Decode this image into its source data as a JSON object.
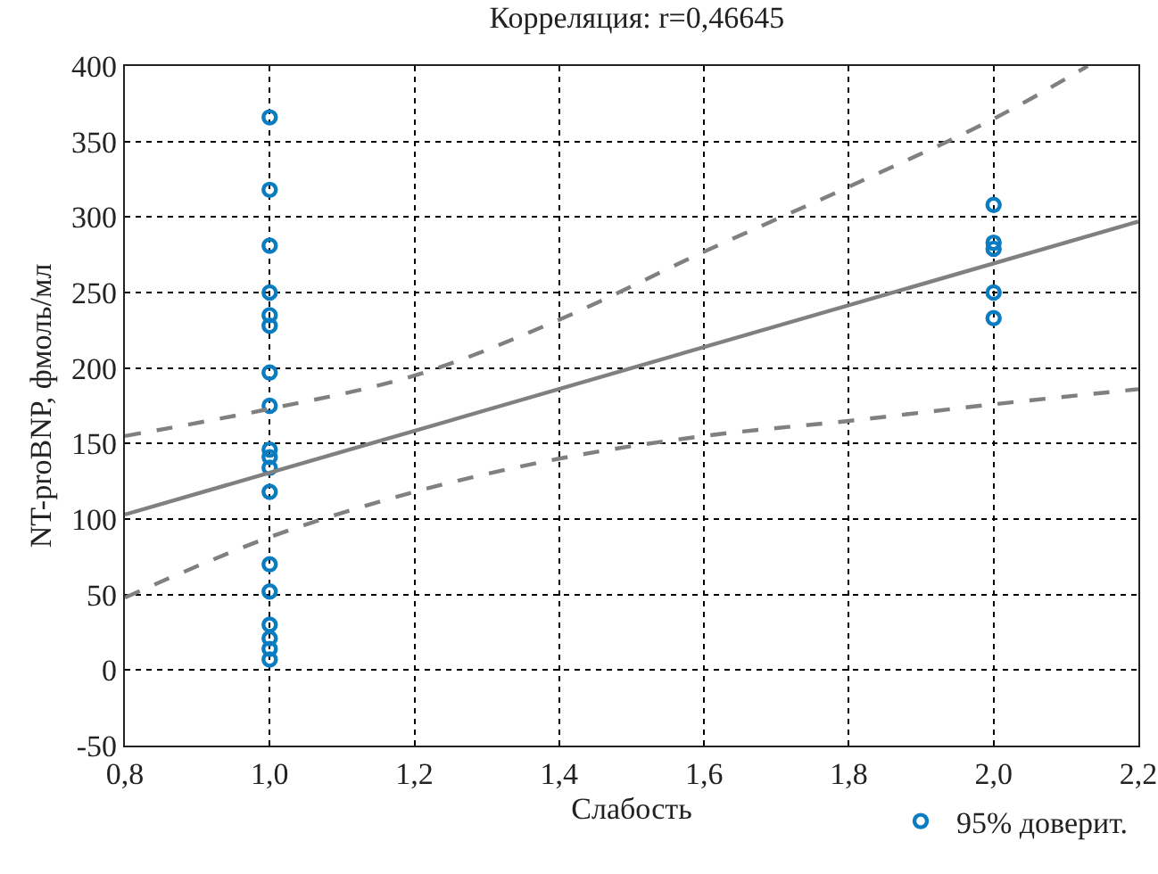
{
  "chart_data": {
    "type": "scatter",
    "title": "Корреляция: r=0,46645",
    "xlabel": "Слабость",
    "ylabel": "NT-proBNP, фмоль/мл",
    "xlim": [
      0.8,
      2.2
    ],
    "xticks": [
      {
        "value": 0.8,
        "label": "0,8"
      },
      {
        "value": 1.0,
        "label": "1,0"
      },
      {
        "value": 1.2,
        "label": "1,2"
      },
      {
        "value": 1.4,
        "label": "1,4"
      },
      {
        "value": 1.6,
        "label": "1,6"
      },
      {
        "value": 1.8,
        "label": "1,8"
      },
      {
        "value": 2.0,
        "label": "2,0"
      },
      {
        "value": 2.2,
        "label": "2,2"
      }
    ],
    "ylim": [
      -50,
      400
    ],
    "yticks": [
      -50,
      0,
      50,
      100,
      150,
      200,
      250,
      300,
      350,
      400
    ],
    "grid": true,
    "legend": "bottom right",
    "series": [
      {
        "name": "95% доверит.",
        "marker": "circle",
        "color": "#0a7cc1",
        "x": [
          1,
          1,
          1,
          1,
          1,
          1,
          1,
          1,
          1,
          1,
          1,
          1,
          1,
          1,
          1,
          1,
          1,
          1,
          2,
          2,
          2,
          2,
          2
        ],
        "values": [
          366,
          318,
          281,
          250,
          235,
          228,
          197,
          175,
          146,
          141,
          134,
          118,
          70,
          52,
          30,
          21,
          14,
          7,
          308,
          283,
          279,
          250,
          233
        ]
      },
      {
        "type": "line",
        "color": "#808080",
        "line_style": "solid",
        "x": [
          0.8,
          2.2
        ],
        "values": [
          103,
          297
        ]
      },
      {
        "type": "line",
        "color": "#808080",
        "line_style": "dashed",
        "x": [
          0.8,
          1.0,
          1.2,
          1.4,
          1.6,
          1.8,
          2.0,
          2.13
        ],
        "values": [
          155,
          173,
          195,
          232,
          277,
          320,
          365,
          400
        ]
      },
      {
        "type": "line",
        "color": "#808080",
        "line_style": "dashed",
        "x": [
          0.8,
          1.0,
          1.2,
          1.4,
          1.6,
          1.8,
          2.0,
          2.2
        ],
        "values": [
          48,
          88,
          118,
          140,
          155,
          165,
          176,
          186
        ]
      }
    ]
  }
}
